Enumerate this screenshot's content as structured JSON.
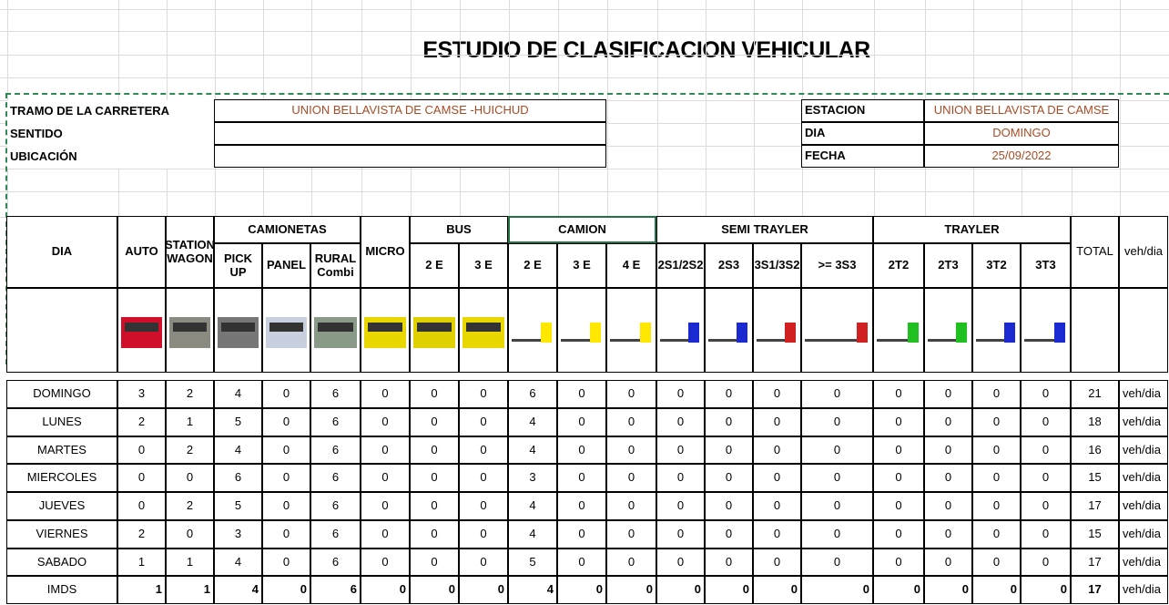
{
  "title": "ESTUDIO DE CLASIFICACION VEHICULAR",
  "info_left": [
    {
      "label": "TRAMO DE LA CARRETERA",
      "value": "UNION BELLAVISTA DE CAMSE -HUICHUD"
    },
    {
      "label": "SENTIDO"
    },
    {
      "label": "UBICACIÓN"
    }
  ],
  "info_right": [
    {
      "label": "ESTACION",
      "value": "UNION BELLAVISTA DE CAMSE"
    },
    {
      "label": "DIA",
      "value": "DOMINGO"
    },
    {
      "label": "FECHA",
      "value": "25/09/2022"
    }
  ],
  "day_header": "DIA",
  "columns": [
    {
      "label": "AUTO"
    },
    {
      "label": "STATION WAGON"
    },
    {
      "group": "CAMIONETAS",
      "labels": [
        "PICK UP",
        "PANEL",
        "RURAL Combi"
      ]
    },
    {
      "label": "MICRO"
    },
    {
      "group": "BUS",
      "labels": [
        "2 E",
        "3 E"
      ]
    },
    {
      "group": "CAMION",
      "labels": [
        "2 E",
        "3 E",
        "4 E"
      ]
    },
    {
      "group": "SEMI TRAYLER",
      "labels": [
        "2S1/2S2",
        "2S3",
        "3S1/3S2",
        ">= 3S3"
      ]
    },
    {
      "group": "TRAYLER",
      "labels": [
        "2T2",
        "2T3",
        "3T2",
        "3T3"
      ]
    },
    {
      "label": "TOTAL"
    },
    {
      "label": "veh/dia"
    }
  ],
  "rows": [
    {
      "day": "DOMINGO",
      "counts": [
        3,
        2,
        4,
        0,
        6,
        0,
        0,
        0,
        6,
        0,
        0,
        0,
        0,
        0,
        0,
        0,
        0,
        0,
        0
      ],
      "total": 21,
      "unit": "veh/dia"
    },
    {
      "day": "LUNES",
      "counts": [
        2,
        1,
        5,
        0,
        6,
        0,
        0,
        0,
        4,
        0,
        0,
        0,
        0,
        0,
        0,
        0,
        0,
        0,
        0
      ],
      "total": 18,
      "unit": "veh/dia"
    },
    {
      "day": "MARTES",
      "counts": [
        0,
        2,
        4,
        0,
        6,
        0,
        0,
        0,
        4,
        0,
        0,
        0,
        0,
        0,
        0,
        0,
        0,
        0,
        0
      ],
      "total": 16,
      "unit": "veh/dia"
    },
    {
      "day": "MIERCOLES",
      "counts": [
        0,
        0,
        6,
        0,
        6,
        0,
        0,
        0,
        3,
        0,
        0,
        0,
        0,
        0,
        0,
        0,
        0,
        0,
        0
      ],
      "total": 15,
      "unit": "veh/dia"
    },
    {
      "day": "JUEVES",
      "counts": [
        0,
        2,
        5,
        0,
        6,
        0,
        0,
        0,
        4,
        0,
        0,
        0,
        0,
        0,
        0,
        0,
        0,
        0,
        0
      ],
      "total": 17,
      "unit": "veh/dia"
    },
    {
      "day": "VIERNES",
      "counts": [
        2,
        0,
        3,
        0,
        6,
        0,
        0,
        0,
        4,
        0,
        0,
        0,
        0,
        0,
        0,
        0,
        0,
        0,
        0
      ],
      "total": 15,
      "unit": "veh/dia"
    },
    {
      "day": "SABADO",
      "counts": [
        1,
        1,
        4,
        0,
        6,
        0,
        0,
        0,
        5,
        0,
        0,
        0,
        0,
        0,
        0,
        0,
        0,
        0,
        0
      ],
      "total": 17,
      "unit": "veh/dia"
    }
  ],
  "summary": {
    "day": "IMDS",
    "counts": [
      1,
      1,
      4,
      0,
      6,
      0,
      0,
      0,
      4,
      0,
      0,
      0,
      0,
      0,
      0,
      0,
      0,
      0,
      0
    ],
    "total": 17,
    "unit": "veh/dia"
  }
}
